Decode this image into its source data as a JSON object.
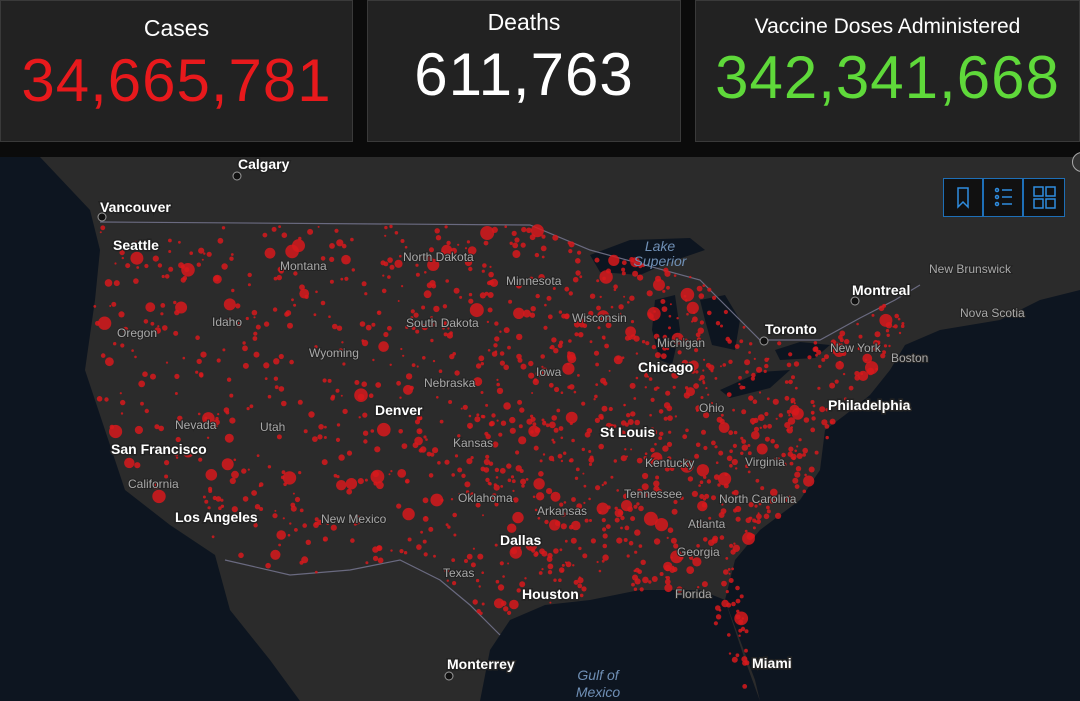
{
  "header": {
    "panels": [
      {
        "label": "Cases",
        "value": "34,665,781"
      },
      {
        "label": "Deaths",
        "value": "611,763"
      },
      {
        "label": "Vaccine Doses Administered",
        "value": "342,341,668"
      }
    ]
  },
  "map": {
    "cities": [
      "Calgary",
      "Vancouver",
      "Seattle",
      "Montreal",
      "Toronto",
      "Chicago",
      "Denver",
      "St Louis",
      "San Francisco",
      "Philadelphia",
      "Los Angeles",
      "Dallas",
      "Houston",
      "Miami",
      "Monterrey",
      "Boston",
      "New York",
      "Atlanta"
    ],
    "regions": [
      "Montana",
      "North Dakota",
      "Minnesota",
      "Wisconsin",
      "Michigan",
      "Oregon",
      "Idaho",
      "South Dakota",
      "Wyoming",
      "Nebraska",
      "Iowa",
      "Ohio",
      "Nevada",
      "Utah",
      "Kansas",
      "Kentucky",
      "Virginia",
      "California",
      "Oklahoma",
      "Arkansas",
      "Tennessee",
      "North Carolina",
      "New Mexico",
      "Georgia",
      "Texas",
      "Florida",
      "New Brunswick",
      "Nova Scotia"
    ],
    "water": [
      [
        "Lake",
        "Superior"
      ],
      [
        "Gulf of",
        "Mexico"
      ]
    ]
  }
}
